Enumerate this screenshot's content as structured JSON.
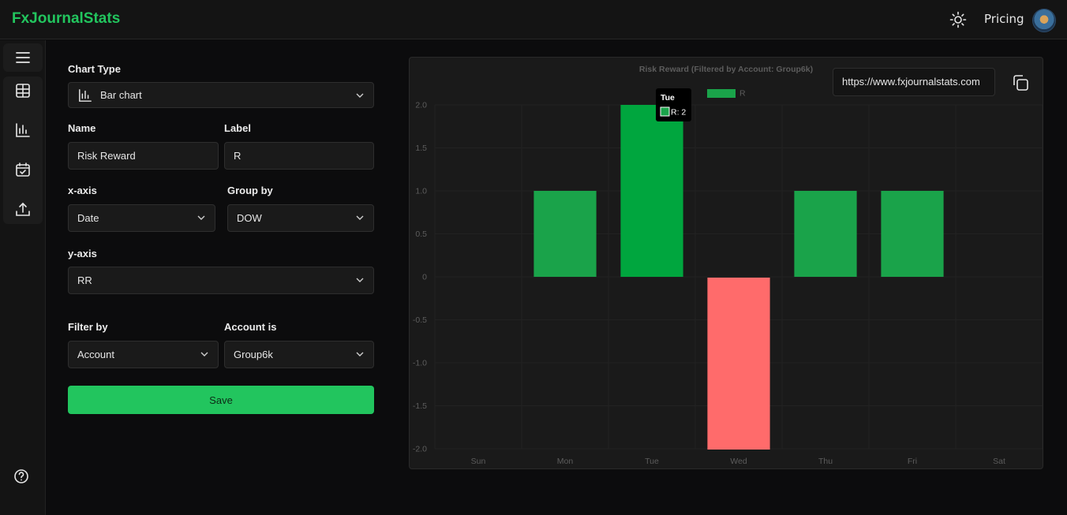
{
  "app": {
    "brand": "FxJournalStats",
    "pricing_label": "Pricing"
  },
  "sidebar": {
    "icons": [
      "menu-icon",
      "table-icon",
      "bar-chart-icon",
      "calendar-check-icon",
      "upload-icon"
    ],
    "help_icon": "help-circle-icon"
  },
  "form": {
    "chart_type_label": "Chart Type",
    "chart_type_value": "Bar chart",
    "name_label": "Name",
    "name_value": "Risk Reward",
    "label_label": "Label",
    "label_value": "R",
    "xaxis_label": "x-axis",
    "xaxis_value": "Date",
    "groupby_label": "Group by",
    "groupby_value": "DOW",
    "yaxis_label": "y-axis",
    "yaxis_value": "RR",
    "filterby_label": "Filter by",
    "filterby_value": "Account",
    "accountis_label": "Account is",
    "accountis_value": "Group6k",
    "save_label": "Save"
  },
  "share": {
    "url": "https://www.fxjournalstats.com"
  },
  "colors": {
    "accent": "#22c55e",
    "positive": "#1aa34a",
    "positive_hover": "#00a63e",
    "negative": "#ff6b6b"
  },
  "chart_data": {
    "type": "bar",
    "title": "Risk Reward (Filtered by Account: Group6k)",
    "legend": [
      "R"
    ],
    "legend_position": "top",
    "categories": [
      "Sun",
      "Mon",
      "Tue",
      "Wed",
      "Thu",
      "Fri",
      "Sat"
    ],
    "values": [
      0,
      1,
      2,
      -2,
      1,
      1,
      0
    ],
    "ylim": [
      -2.0,
      2.0
    ],
    "yticks": [
      "2.0",
      "1.5",
      "1.0",
      "0.5",
      "0",
      "-0.5",
      "-1.0",
      "-1.5",
      "-2.0"
    ],
    "tooltip": {
      "title": "Tue",
      "text": "R: 2"
    }
  }
}
